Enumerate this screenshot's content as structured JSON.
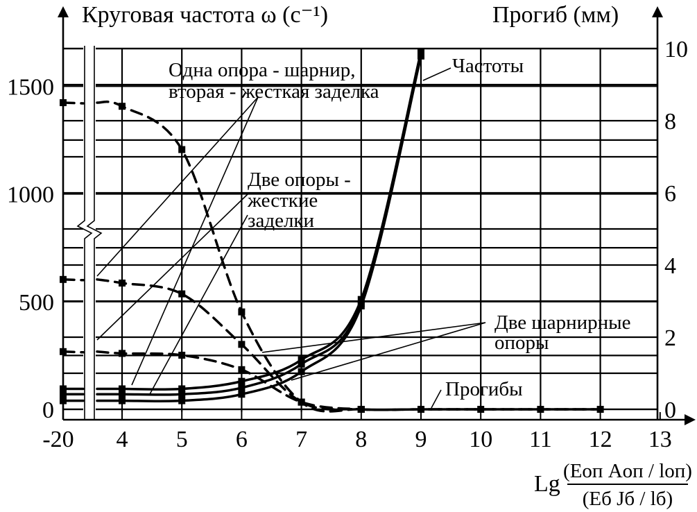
{
  "chart_data": {
    "type": "line",
    "y_left_label": "Круговая частота ω (с⁻¹)",
    "y_right_label": "Прогиб (мм)",
    "x_label": {
      "prefix": "Lg",
      "numerator": "(Eоп Aоп / lоп)",
      "denominator": "(Eб Jб / lб)"
    },
    "x_ticks": [
      "-20",
      "4",
      "5",
      "6",
      "7",
      "8",
      "9",
      "10",
      "11",
      "12",
      "13"
    ],
    "y_left_ticks": [
      "0",
      "500",
      "1000",
      "1500"
    ],
    "y_right_ticks": [
      "0",
      "2",
      "4",
      "6",
      "8",
      "10"
    ],
    "xlim": [
      3.5,
      13
    ],
    "ylim_left": [
      0,
      1600
    ],
    "ylim_right": [
      0,
      10
    ],
    "axis_break": "between -20 and 4",
    "grid": true,
    "series": [
      {
        "name": "Частоты — одна опора - шарнир, вторая - жесткая заделка",
        "axis": "left",
        "style": "solid",
        "points": [
          [
            "-20",
            70
          ],
          [
            4,
            70
          ],
          [
            5,
            70
          ],
          [
            6,
            100
          ],
          [
            7,
            210
          ],
          [
            8,
            490
          ],
          [
            9,
            1650
          ]
        ]
      },
      {
        "name": "Частоты — две опоры - жесткие заделки",
        "axis": "left",
        "style": "solid",
        "points": [
          [
            "-20",
            95
          ],
          [
            4,
            95
          ],
          [
            5,
            95
          ],
          [
            6,
            130
          ],
          [
            7,
            230
          ],
          [
            8,
            510
          ],
          [
            9,
            1660
          ]
        ]
      },
      {
        "name": "Частоты — две шарнирные опоры",
        "axis": "left",
        "style": "solid",
        "points": [
          [
            "-20",
            40
          ],
          [
            4,
            40
          ],
          [
            5,
            40
          ],
          [
            6,
            70
          ],
          [
            7,
            175
          ],
          [
            8,
            480
          ],
          [
            9,
            1640
          ]
        ]
      },
      {
        "name": "Прогибы — одна опора - шарнир, вторая - жесткая заделка",
        "axis": "right",
        "style": "dashed",
        "points": [
          [
            "-20",
            8.5
          ],
          [
            4,
            8.4
          ],
          [
            5,
            7.2
          ],
          [
            6,
            2.7
          ],
          [
            7,
            0.2
          ],
          [
            8,
            0
          ],
          [
            9,
            0
          ],
          [
            10,
            0
          ],
          [
            11,
            0
          ],
          [
            12,
            0
          ]
        ]
      },
      {
        "name": "Прогибы — две опоры - жесткие заделки",
        "axis": "right",
        "style": "dashed",
        "points": [
          [
            "-20",
            3.6
          ],
          [
            4,
            3.5
          ],
          [
            5,
            3.2
          ],
          [
            6,
            1.8
          ],
          [
            7,
            0.2
          ],
          [
            8,
            0
          ],
          [
            9,
            0
          ],
          [
            10,
            0
          ],
          [
            11,
            0
          ],
          [
            12,
            0
          ]
        ]
      },
      {
        "name": "Прогибы — две шарнирные опоры",
        "axis": "right",
        "style": "dashed",
        "points": [
          [
            "-20",
            1.6
          ],
          [
            4,
            1.55
          ],
          [
            5,
            1.5
          ],
          [
            6,
            1.1
          ],
          [
            7,
            0.2
          ],
          [
            8,
            0
          ],
          [
            9,
            0
          ],
          [
            10,
            0
          ],
          [
            11,
            0
          ],
          [
            12,
            0
          ]
        ]
      }
    ],
    "annotations": {
      "freq_label": "Частоты",
      "defl_label": "Прогибы",
      "ann1_line1": "Одна опора - шарнир,",
      "ann1_line2": "вторая - жесткая заделка",
      "ann2_line1": "Две опоры -",
      "ann2_line2": "жесткие",
      "ann2_line3": "заделки",
      "ann3_line1": "Две шарнирные",
      "ann3_line2": "опоры"
    }
  }
}
